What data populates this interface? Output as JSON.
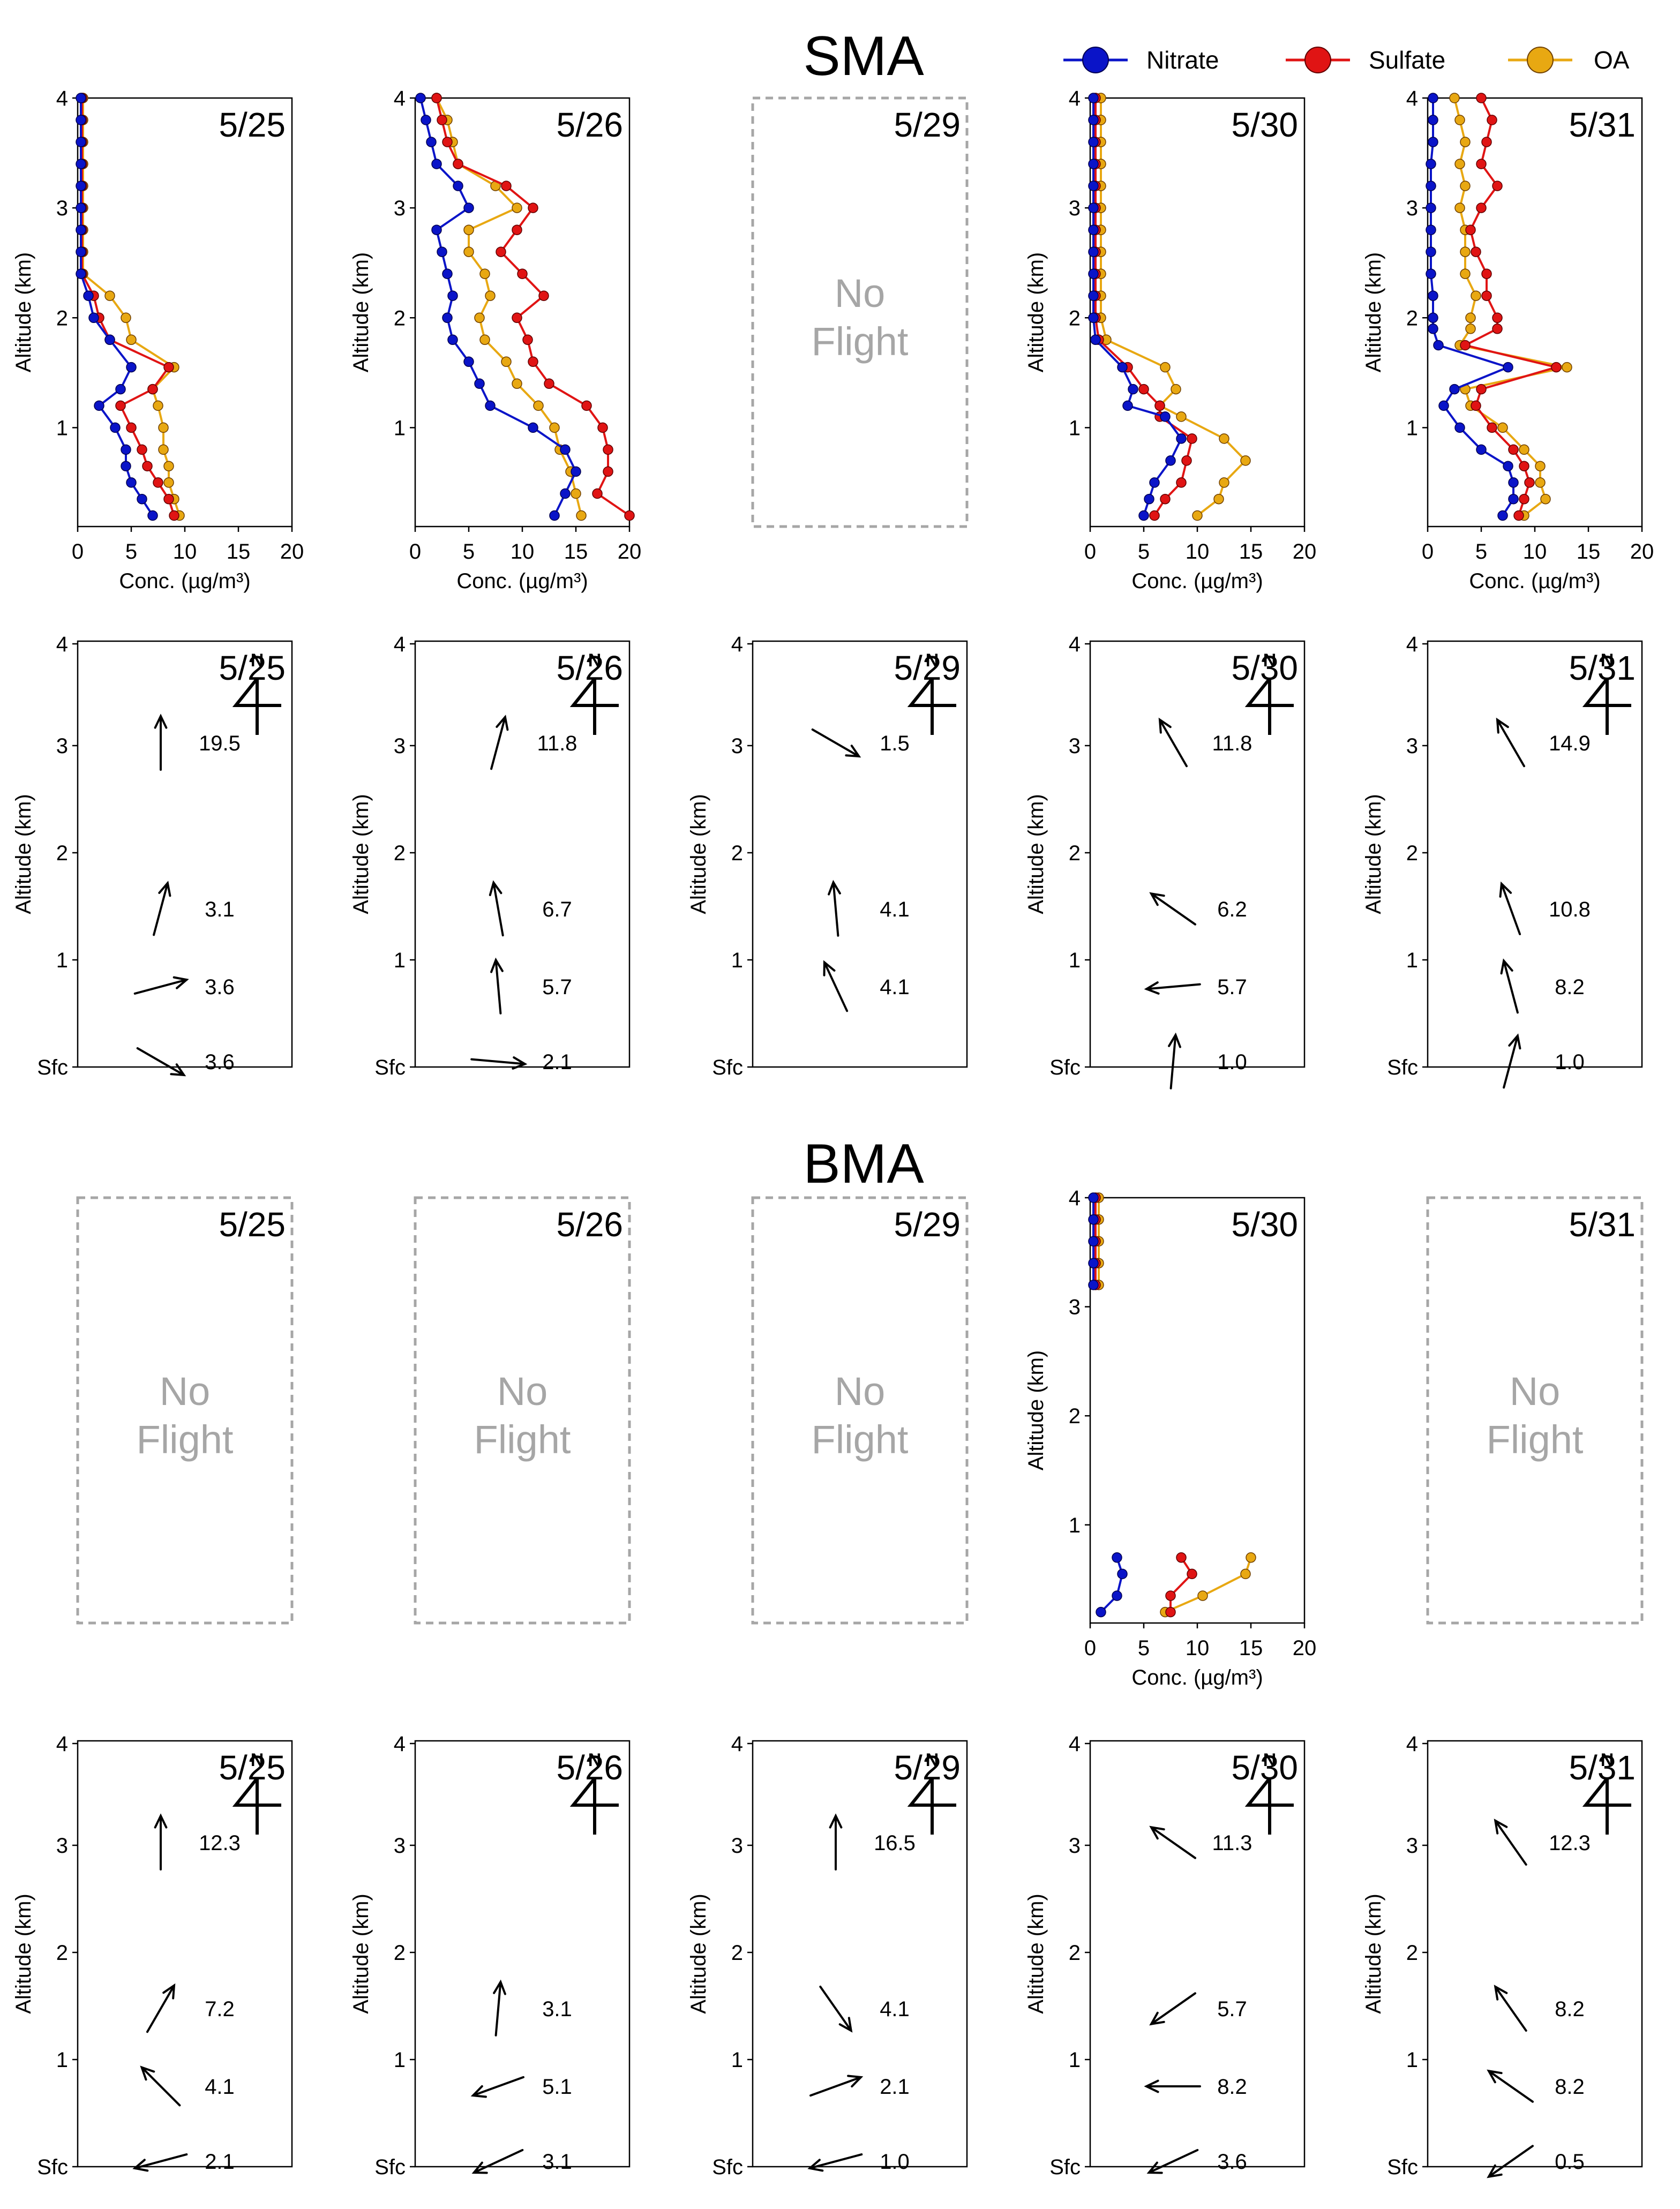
{
  "legend": {
    "items": [
      {
        "name": "Nitrate",
        "color": "#0a14c8"
      },
      {
        "name": "Sulfate",
        "color": "#e01414"
      },
      {
        "name": "OA",
        "color": "#e8a812"
      }
    ]
  },
  "labels": {
    "no_flight_line1": "No",
    "no_flight_line2": "Flight",
    "conc_axis": "Conc. (µg/m³)",
    "alt_axis": "Altitude (km)",
    "sfc": "Sfc",
    "north": "N"
  },
  "chart_data": {
    "type": "line",
    "y_axis": {
      "label": "Altitude (km)",
      "ylim": [
        0.1,
        4.0
      ],
      "ticks": [
        1,
        2,
        3,
        4
      ]
    },
    "x_axis": {
      "label": "Conc. (µg/m³)",
      "xlim": [
        0,
        20
      ],
      "ticks": [
        0,
        5,
        10,
        15,
        20
      ]
    },
    "wind_y_ticks": [
      "Sfc",
      "1",
      "2",
      "3",
      "4"
    ],
    "series_names": [
      "Nitrate",
      "Sulfate",
      "OA"
    ],
    "regions": [
      {
        "name": "SMA",
        "panels": [
          {
            "date": "5/25",
            "flight": true,
            "altitude": [
              0.2,
              0.35,
              0.5,
              0.65,
              0.8,
              1.0,
              1.2,
              1.35,
              1.55,
              1.8,
              2.0,
              2.2,
              2.4,
              2.6,
              2.8,
              3.0,
              3.2,
              3.4,
              3.6,
              3.8,
              4.0
            ],
            "Nitrate": [
              7.0,
              6.0,
              5.0,
              4.5,
              4.5,
              3.5,
              2.0,
              4.0,
              5.0,
              3.0,
              1.5,
              1.0,
              0.3,
              0.3,
              0.3,
              0.3,
              0.3,
              0.3,
              0.3,
              0.3,
              0.3
            ],
            "Sulfate": [
              9.0,
              8.5,
              7.5,
              6.5,
              6.0,
              5.0,
              4.0,
              7.0,
              8.5,
              3.0,
              2.0,
              1.5,
              0.4,
              0.4,
              0.4,
              0.4,
              0.4,
              0.4,
              0.4,
              0.4,
              0.4
            ],
            "OA": [
              9.5,
              9.0,
              8.5,
              8.5,
              8.0,
              8.0,
              7.5,
              7.0,
              9.0,
              5.0,
              4.5,
              3.0,
              0.5,
              0.5,
              0.5,
              0.5,
              0.5,
              0.5,
              0.5,
              0.5,
              0.5
            ],
            "wind": [
              {
                "level": "3.3 km",
                "dir_deg": 0,
                "speed": "19.5"
              },
              {
                "level": "1.5 km",
                "dir_deg": 15,
                "speed": "3.1"
              },
              {
                "level": "0.8 km",
                "dir_deg": 75,
                "speed": "3.6"
              },
              {
                "level": "Sfc",
                "dir_deg": 120,
                "speed": "3.6"
              }
            ]
          },
          {
            "date": "5/26",
            "flight": true,
            "altitude": [
              0.2,
              0.4,
              0.6,
              0.8,
              1.0,
              1.2,
              1.4,
              1.6,
              1.8,
              2.0,
              2.2,
              2.4,
              2.6,
              2.8,
              3.0,
              3.2,
              3.4,
              3.6,
              3.8,
              4.0
            ],
            "Nitrate": [
              13.0,
              14.0,
              15.0,
              14.0,
              11.0,
              7.0,
              6.0,
              5.0,
              3.5,
              3.0,
              3.5,
              3.0,
              2.5,
              2.0,
              5.0,
              4.0,
              2.0,
              1.5,
              1.0,
              0.5
            ],
            "Sulfate": [
              20.0,
              17.0,
              18.0,
              18.0,
              17.5,
              16.0,
              12.5,
              11.0,
              10.5,
              9.5,
              12.0,
              10.0,
              8.0,
              9.5,
              11.0,
              8.5,
              4.0,
              3.0,
              2.5,
              2.0
            ],
            "OA": [
              15.5,
              15.0,
              14.5,
              13.5,
              13.0,
              11.5,
              9.5,
              8.5,
              6.5,
              6.0,
              7.0,
              6.5,
              5.0,
              5.0,
              9.5,
              7.5,
              4.0,
              3.5,
              3.0,
              2.0
            ],
            "wind": [
              {
                "level": "3.3 km",
                "dir_deg": 15,
                "speed": "11.8"
              },
              {
                "level": "1.5 km",
                "dir_deg": -10,
                "speed": "6.7"
              },
              {
                "level": "0.8 km",
                "dir_deg": -5,
                "speed": "5.7"
              },
              {
                "level": "Sfc",
                "dir_deg": 95,
                "speed": "2.1"
              }
            ]
          },
          {
            "date": "5/29",
            "flight": false,
            "wind": [
              {
                "level": "3.3 km",
                "dir_deg": 120,
                "speed": "1.5"
              },
              {
                "level": "1.5 km",
                "dir_deg": -5,
                "speed": "4.1"
              },
              {
                "level": "0.8 km",
                "dir_deg": -25,
                "speed": "4.1"
              }
            ]
          },
          {
            "date": "5/30",
            "flight": true,
            "altitude": [
              0.2,
              0.35,
              0.5,
              0.7,
              0.9,
              1.1,
              1.2,
              1.35,
              1.55,
              1.8,
              2.0,
              2.2,
              2.4,
              2.6,
              2.8,
              3.0,
              3.2,
              3.4,
              3.6,
              3.8,
              4.0
            ],
            "Nitrate": [
              5.0,
              5.5,
              6.0,
              7.5,
              8.5,
              7.0,
              3.5,
              4.0,
              3.0,
              0.5,
              0.3,
              0.3,
              0.3,
              0.3,
              0.3,
              0.3,
              0.3,
              0.3,
              0.3,
              0.3,
              0.3
            ],
            "Sulfate": [
              6.0,
              7.0,
              8.5,
              9.0,
              9.5,
              6.5,
              6.5,
              5.0,
              3.5,
              0.8,
              0.5,
              0.5,
              0.5,
              0.5,
              0.5,
              0.5,
              0.5,
              0.5,
              0.5,
              0.5,
              0.5
            ],
            "OA": [
              10.0,
              12.0,
              12.5,
              14.5,
              12.5,
              8.5,
              6.5,
              8.0,
              7.0,
              1.5,
              1.0,
              1.0,
              1.0,
              1.0,
              1.0,
              1.0,
              1.0,
              1.0,
              1.0,
              1.0,
              1.0
            ],
            "wind": [
              {
                "level": "3.3 km",
                "dir_deg": -30,
                "speed": "11.8"
              },
              {
                "level": "1.5 km",
                "dir_deg": -55,
                "speed": "6.2"
              },
              {
                "level": "0.8 km",
                "dir_deg": -95,
                "speed": "5.7"
              },
              {
                "level": "Sfc",
                "dir_deg": 5,
                "speed": "1.0"
              }
            ]
          },
          {
            "date": "5/31",
            "flight": true,
            "altitude": [
              0.2,
              0.35,
              0.5,
              0.65,
              0.8,
              1.0,
              1.2,
              1.35,
              1.55,
              1.75,
              1.9,
              2.0,
              2.2,
              2.4,
              2.6,
              2.8,
              3.0,
              3.2,
              3.4,
              3.6,
              3.8,
              4.0
            ],
            "Nitrate": [
              7.0,
              8.0,
              8.0,
              7.5,
              5.0,
              3.0,
              1.5,
              2.5,
              7.5,
              1.0,
              0.5,
              0.5,
              0.5,
              0.3,
              0.3,
              0.3,
              0.3,
              0.3,
              0.3,
              0.5,
              0.5,
              0.5
            ],
            "Sulfate": [
              8.5,
              9.0,
              9.5,
              9.0,
              8.0,
              6.0,
              4.5,
              5.0,
              12.0,
              3.5,
              6.5,
              6.5,
              5.5,
              5.5,
              4.5,
              4.0,
              5.0,
              6.5,
              5.0,
              5.5,
              6.0,
              5.0
            ],
            "OA": [
              9.0,
              11.0,
              10.5,
              10.5,
              9.0,
              7.0,
              4.0,
              3.5,
              13.0,
              3.0,
              4.0,
              4.0,
              4.5,
              3.5,
              3.5,
              3.5,
              3.0,
              3.5,
              3.0,
              3.5,
              3.0,
              2.5
            ],
            "wind": [
              {
                "level": "3.3 km",
                "dir_deg": -30,
                "speed": "14.9"
              },
              {
                "level": "1.5 km",
                "dir_deg": -20,
                "speed": "10.8"
              },
              {
                "level": "0.8 km",
                "dir_deg": -15,
                "speed": "8.2"
              },
              {
                "level": "Sfc",
                "dir_deg": 15,
                "speed": "1.0"
              }
            ]
          }
        ]
      },
      {
        "name": "BMA",
        "panels": [
          {
            "date": "5/25",
            "flight": false,
            "wind": [
              {
                "level": "3.3 km",
                "dir_deg": 0,
                "speed": "12.3"
              },
              {
                "level": "1.5 km",
                "dir_deg": 30,
                "speed": "7.2"
              },
              {
                "level": "0.8 km",
                "dir_deg": -45,
                "speed": "4.1"
              },
              {
                "level": "Sfc",
                "dir_deg": -105,
                "speed": "2.1"
              }
            ]
          },
          {
            "date": "5/26",
            "flight": false,
            "wind": [
              {
                "level": "3.3 km",
                "dir_deg": null,
                "speed": ""
              },
              {
                "level": "1.5 km",
                "dir_deg": 5,
                "speed": "3.1"
              },
              {
                "level": "0.8 km",
                "dir_deg": -110,
                "speed": "5.1"
              },
              {
                "level": "Sfc",
                "dir_deg": -115,
                "speed": "3.1"
              }
            ]
          },
          {
            "date": "5/29",
            "flight": false,
            "wind": [
              {
                "level": "3.3 km",
                "dir_deg": 0,
                "speed": "16.5"
              },
              {
                "level": "1.5 km",
                "dir_deg": 145,
                "speed": "4.1"
              },
              {
                "level": "0.8 km",
                "dir_deg": 70,
                "speed": "2.1"
              },
              {
                "level": "Sfc",
                "dir_deg": -105,
                "speed": "1.0"
              }
            ]
          },
          {
            "date": "5/30",
            "flight": true,
            "altitude": [
              0.2,
              0.35,
              0.55,
              0.7,
              3.2,
              3.4,
              3.6,
              3.8,
              4.0
            ],
            "Nitrate": [
              1.0,
              2.5,
              3.0,
              2.5,
              0.3,
              0.3,
              0.3,
              0.3,
              0.3
            ],
            "Sulfate": [
              7.5,
              7.5,
              9.5,
              8.5,
              0.5,
              0.5,
              0.5,
              0.5,
              0.5
            ],
            "OA": [
              7.0,
              10.5,
              14.5,
              15.0,
              0.8,
              0.8,
              0.8,
              0.8,
              0.8
            ],
            "segments": [
              [
                0,
                3
              ],
              [
                4,
                8
              ]
            ],
            "wind": [
              {
                "level": "3.3 km",
                "dir_deg": -55,
                "speed": "11.3"
              },
              {
                "level": "1.5 km",
                "dir_deg": -125,
                "speed": "5.7"
              },
              {
                "level": "0.8 km",
                "dir_deg": -90,
                "speed": "8.2"
              },
              {
                "level": "Sfc",
                "dir_deg": -115,
                "speed": "3.6"
              }
            ]
          },
          {
            "date": "5/31",
            "flight": false,
            "wind": [
              {
                "level": "3.3 km",
                "dir_deg": -35,
                "speed": "12.3"
              },
              {
                "level": "1.5 km",
                "dir_deg": -35,
                "speed": "8.2"
              },
              {
                "level": "0.8 km",
                "dir_deg": -55,
                "speed": "8.2"
              },
              {
                "level": "Sfc",
                "dir_deg": -125,
                "speed": "0.5"
              }
            ]
          }
        ]
      }
    ]
  }
}
